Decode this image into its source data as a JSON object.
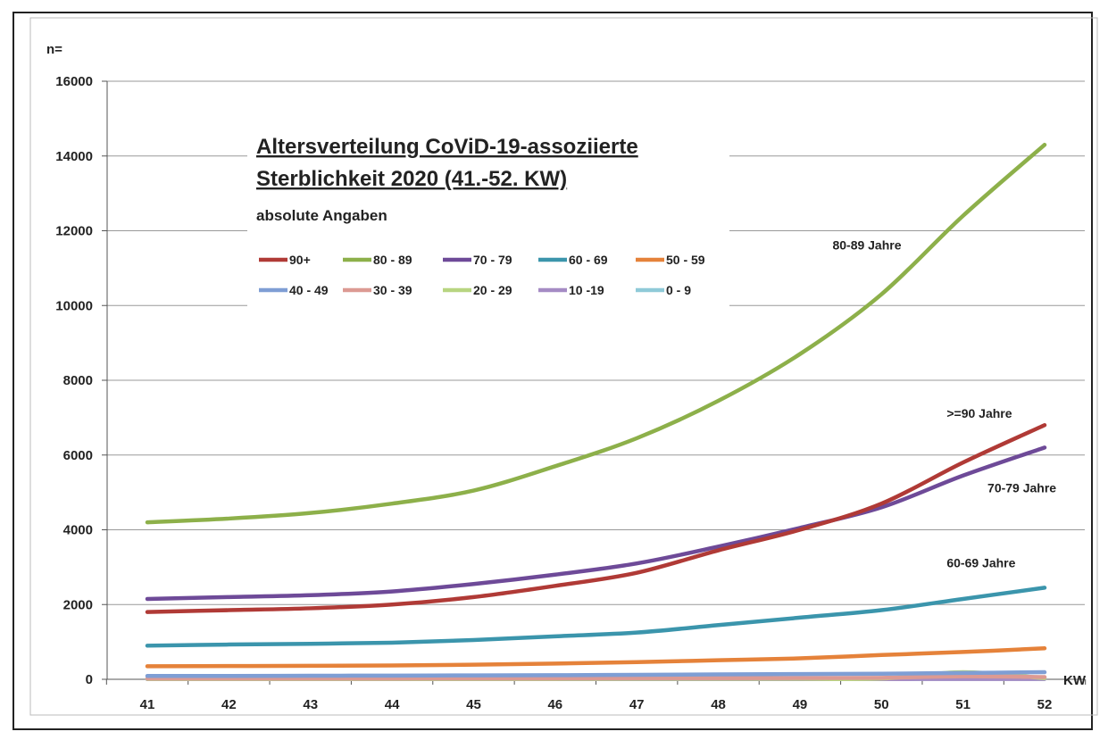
{
  "chart_data": {
    "type": "line",
    "title_lines": [
      "Altersverteilung CoViD-19-assoziierte",
      "Sterblichkeit 2020 (41.-52. KW)"
    ],
    "subtitle": "absolute Angaben",
    "ylabel": "n=",
    "xlabel": "KW",
    "x": [
      41,
      42,
      43,
      44,
      45,
      46,
      47,
      48,
      49,
      50,
      51,
      52
    ],
    "ylim": [
      0,
      16000
    ],
    "yticks": [
      0,
      2000,
      4000,
      6000,
      8000,
      10000,
      12000,
      14000,
      16000
    ],
    "grid": true,
    "legend_position": "upper-left",
    "series": [
      {
        "name": "90+",
        "color": "#b03a36",
        "values": [
          1800,
          1850,
          1900,
          2000,
          2200,
          2500,
          2850,
          3450,
          4000,
          4700,
          5800,
          6800
        ]
      },
      {
        "name": "80 - 89",
        "color": "#8db04a",
        "values": [
          4200,
          4300,
          4450,
          4700,
          5050,
          5700,
          6450,
          7450,
          8700,
          10300,
          12400,
          14300
        ]
      },
      {
        "name": "70 - 79",
        "color": "#6e4a98",
        "values": [
          2150,
          2200,
          2250,
          2350,
          2550,
          2800,
          3100,
          3550,
          4050,
          4600,
          5450,
          6200
        ]
      },
      {
        "name": "60 - 69",
        "color": "#3b95ac",
        "values": [
          900,
          930,
          950,
          980,
          1050,
          1150,
          1250,
          1450,
          1650,
          1850,
          2150,
          2450
        ]
      },
      {
        "name": "50 - 59",
        "color": "#e5823a",
        "values": [
          350,
          355,
          360,
          370,
          390,
          420,
          460,
          510,
          560,
          650,
          730,
          830
        ]
      },
      {
        "name": "40 - 49",
        "color": "#7f9ed4",
        "values": [
          90,
          90,
          95,
          100,
          105,
          110,
          120,
          130,
          140,
          150,
          170,
          190
        ]
      },
      {
        "name": "30 - 39",
        "color": "#dc9a93",
        "values": [
          20,
          20,
          20,
          20,
          25,
          25,
          30,
          30,
          35,
          40,
          80,
          60
        ]
      },
      {
        "name": "20 - 29",
        "color": "#b8d581",
        "values": [
          10,
          10,
          10,
          10,
          10,
          10,
          15,
          15,
          15,
          20,
          190,
          30
        ]
      },
      {
        "name": "10 -19",
        "color": "#a58bc4",
        "values": [
          5,
          5,
          5,
          5,
          5,
          5,
          5,
          5,
          5,
          5,
          10,
          10
        ]
      },
      {
        "name": "0 - 9",
        "color": "#8fcad8",
        "values": [
          5,
          5,
          5,
          5,
          5,
          5,
          5,
          5,
          5,
          5,
          10,
          10
        ]
      }
    ],
    "annotations": [
      {
        "text": "80-89 Jahre",
        "x": 49.4,
        "y": 11500
      },
      {
        "text": ">=90 Jahre",
        "x": 50.8,
        "y": 7000
      },
      {
        "text": "70-79 Jahre",
        "x": 51.3,
        "y": 5000
      },
      {
        "text": "60-69 Jahre",
        "x": 50.8,
        "y": 3000
      }
    ]
  }
}
